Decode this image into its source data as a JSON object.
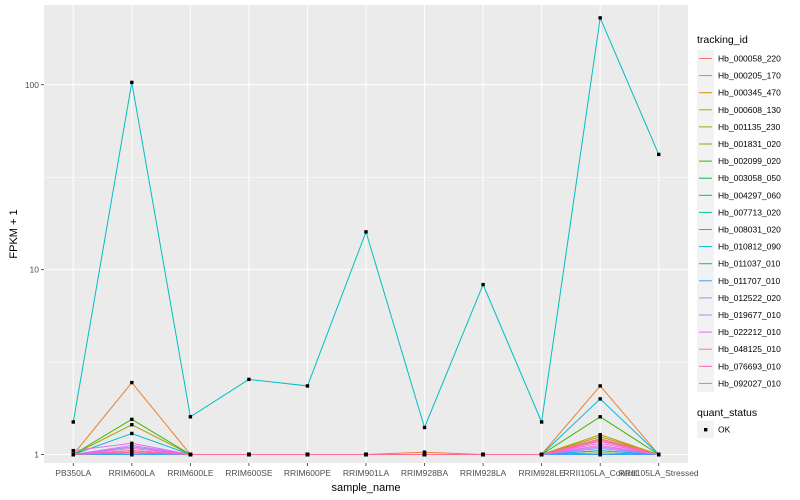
{
  "chart_data": {
    "type": "line",
    "title": "",
    "xlabel": "sample_name",
    "ylabel": "FPKM + 1",
    "y_scale": "log10",
    "ylim": [
      0.9,
      270
    ],
    "y_ticks": [
      1,
      10,
      100
    ],
    "y_tick_labels": [
      "1",
      "10",
      "100"
    ],
    "grid": true,
    "legend_position": "right",
    "categories": [
      "PB350LA",
      "RRIM600LA",
      "RRIM600LE",
      "RRIM600SE",
      "RRIM600PE",
      "RRIM901LA",
      "RRIM928BA",
      "RRIM928LA",
      "RRIM928LE",
      "RRII105LA_Control",
      "RRII105LA_Stressed"
    ],
    "color_legend_title": "tracking_id",
    "shape_legend_title": "quant_status",
    "shape_legend_items": [
      {
        "label": "OK"
      }
    ],
    "series": [
      {
        "name": "Hb_000058_220",
        "color": "#F8766D",
        "values": [
          1.0,
          1.05,
          1.0,
          1.0,
          1.0,
          1.0,
          1.0,
          1.0,
          1.0,
          1.2,
          1.0
        ]
      },
      {
        "name": "Hb_000205_170",
        "color": "#EA8331",
        "values": [
          1.0,
          2.45,
          1.0,
          1.0,
          1.0,
          1.0,
          1.03,
          1.0,
          1.0,
          2.35,
          1.0
        ]
      },
      {
        "name": "Hb_000345_470",
        "color": "#D89000",
        "values": [
          1.0,
          1.0,
          1.0,
          1.0,
          1.0,
          1.0,
          1.0,
          1.0,
          1.0,
          1.05,
          1.0
        ]
      },
      {
        "name": "Hb_000608_130",
        "color": "#C09B00",
        "values": [
          1.0,
          1.05,
          1.0,
          1.0,
          1.0,
          1.0,
          1.0,
          1.0,
          1.0,
          1.28,
          1.0
        ]
      },
      {
        "name": "Hb_001135_230",
        "color": "#A3A500",
        "values": [
          1.0,
          1.45,
          1.0,
          1.0,
          1.0,
          1.0,
          1.0,
          1.0,
          1.0,
          1.25,
          1.0
        ]
      },
      {
        "name": "Hb_001831_020",
        "color": "#7CAE00",
        "values": [
          1.0,
          1.02,
          1.0,
          1.0,
          1.0,
          1.0,
          1.0,
          1.0,
          1.0,
          1.02,
          1.0
        ]
      },
      {
        "name": "Hb_002099_020",
        "color": "#39B600",
        "values": [
          1.0,
          1.55,
          1.0,
          1.0,
          1.0,
          1.0,
          1.0,
          1.0,
          1.0,
          1.6,
          1.0
        ]
      },
      {
        "name": "Hb_003058_050",
        "color": "#00BB4E",
        "values": [
          1.0,
          1.0,
          1.0,
          1.0,
          1.0,
          1.0,
          1.0,
          1.0,
          1.0,
          1.0,
          1.0
        ]
      },
      {
        "name": "Hb_004297_060",
        "color": "#00BF7D",
        "values": [
          1.0,
          1.0,
          1.0,
          1.0,
          1.0,
          1.0,
          1.0,
          1.0,
          1.0,
          1.0,
          1.0
        ]
      },
      {
        "name": "Hb_007713_020",
        "color": "#00C1A3",
        "values": [
          1.0,
          1.0,
          1.0,
          1.0,
          1.0,
          1.0,
          1.0,
          1.0,
          1.0,
          1.0,
          1.0
        ]
      },
      {
        "name": "Hb_008031_020",
        "color": "#00BFC4",
        "values": [
          1.5,
          103,
          1.6,
          2.55,
          2.35,
          16.0,
          1.4,
          8.3,
          1.5,
          230,
          42
        ]
      },
      {
        "name": "Hb_010812_090",
        "color": "#00BAE0",
        "values": [
          1.0,
          1.3,
          1.0,
          1.0,
          1.0,
          1.0,
          1.0,
          1.0,
          1.0,
          2.0,
          1.0
        ]
      },
      {
        "name": "Hb_011037_010",
        "color": "#00B0F6",
        "values": [
          1.0,
          1.02,
          1.0,
          1.0,
          1.0,
          1.0,
          1.0,
          1.0,
          1.0,
          1.05,
          1.0
        ]
      },
      {
        "name": "Hb_011707_010",
        "color": "#35A2FF",
        "values": [
          1.0,
          1.0,
          1.0,
          1.0,
          1.0,
          1.0,
          1.0,
          1.0,
          1.0,
          1.0,
          1.0
        ]
      },
      {
        "name": "Hb_012522_020",
        "color": "#9590FF",
        "values": [
          1.0,
          1.1,
          1.0,
          1.0,
          1.0,
          1.0,
          1.0,
          1.0,
          1.0,
          1.08,
          1.0
        ]
      },
      {
        "name": "Hb_019677_010",
        "color": "#C77CFF",
        "values": [
          1.0,
          1.12,
          1.0,
          1.0,
          1.0,
          1.0,
          1.0,
          1.0,
          1.0,
          1.1,
          1.0
        ]
      },
      {
        "name": "Hb_022212_010",
        "color": "#E76BF3",
        "values": [
          1.05,
          1.15,
          1.0,
          1.0,
          1.0,
          1.0,
          1.0,
          1.0,
          1.0,
          1.15,
          1.0
        ]
      },
      {
        "name": "Hb_048125_010",
        "color": "#FA62DB",
        "values": [
          1.0,
          1.08,
          1.0,
          1.0,
          1.0,
          1.0,
          1.0,
          1.0,
          1.0,
          1.12,
          1.0
        ]
      },
      {
        "name": "Hb_076693_010",
        "color": "#FF62BC",
        "values": [
          1.0,
          1.05,
          1.0,
          1.0,
          1.0,
          1.0,
          1.0,
          1.0,
          1.0,
          1.18,
          1.0
        ]
      },
      {
        "name": "Hb_092027_010",
        "color": "#FF6C91",
        "values": [
          1.0,
          1.03,
          1.0,
          1.0,
          1.0,
          1.0,
          1.0,
          1.0,
          1.0,
          1.22,
          1.0
        ]
      }
    ]
  }
}
